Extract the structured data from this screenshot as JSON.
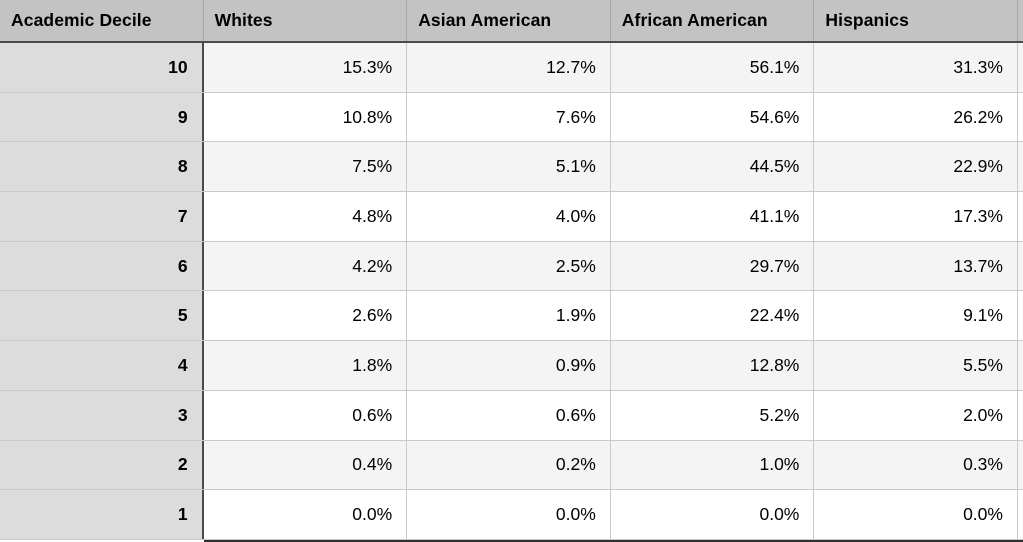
{
  "table": {
    "columns": [
      "Academic Decile",
      "Whites",
      "Asian American",
      "African American",
      "Hispanics"
    ],
    "rows": [
      [
        "10",
        "15.3%",
        "12.7%",
        "56.1%",
        "31.3%"
      ],
      [
        "9",
        "10.8%",
        "7.6%",
        "54.6%",
        "26.2%"
      ],
      [
        "8",
        "7.5%",
        "5.1%",
        "44.5%",
        "22.9%"
      ],
      [
        "7",
        "4.8%",
        "4.0%",
        "41.1%",
        "17.3%"
      ],
      [
        "6",
        "4.2%",
        "2.5%",
        "29.7%",
        "13.7%"
      ],
      [
        "5",
        "2.6%",
        "1.9%",
        "22.4%",
        "9.1%"
      ],
      [
        "4",
        "1.8%",
        "0.9%",
        "12.8%",
        "5.5%"
      ],
      [
        "3",
        "0.6%",
        "0.6%",
        "5.2%",
        "2.0%"
      ],
      [
        "2",
        "0.4%",
        "0.2%",
        "1.0%",
        "0.3%"
      ],
      [
        "1",
        "0.0%",
        "0.0%",
        "0.0%",
        "0.0%"
      ]
    ]
  },
  "colors": {
    "header_bg": "#c3c3c3",
    "label_column_bg": "#dcdcdc",
    "row_white_bg": "#ffffff",
    "row_shaded_bg": "#f4f4f4",
    "grid_line": "#c9c9c9",
    "header_separator": "#a6a6a6",
    "strong_border": "#4a4a4a"
  },
  "chart_data": {
    "type": "table",
    "title": "",
    "columns": [
      "Academic Decile",
      "Whites",
      "Asian American",
      "African American",
      "Hispanics"
    ],
    "categories": [
      10,
      9,
      8,
      7,
      6,
      5,
      4,
      3,
      2,
      1
    ],
    "series": [
      {
        "name": "Whites",
        "values": [
          15.3,
          10.8,
          7.5,
          4.8,
          4.2,
          2.6,
          1.8,
          0.6,
          0.4,
          0.0
        ]
      },
      {
        "name": "Asian American",
        "values": [
          12.7,
          7.6,
          5.1,
          4.0,
          2.5,
          1.9,
          0.9,
          0.6,
          0.2,
          0.0
        ]
      },
      {
        "name": "African American",
        "values": [
          56.1,
          54.6,
          44.5,
          41.1,
          29.7,
          22.4,
          12.8,
          5.2,
          1.0,
          0.0
        ]
      },
      {
        "name": "Hispanics",
        "values": [
          31.3,
          26.2,
          22.9,
          17.3,
          13.7,
          9.1,
          5.5,
          2.0,
          0.3,
          0.0
        ]
      }
    ],
    "unit": "%",
    "layout_hints": {
      "first_column_header": "Academic Decile",
      "value_alignment": "right",
      "alternating_row_shading": true,
      "grid": true
    }
  }
}
